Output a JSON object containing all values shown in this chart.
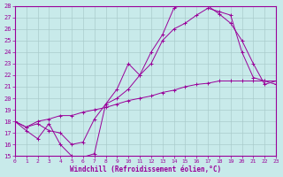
{
  "xlabel": "Windchill (Refroidissement éolien,°C)",
  "bg_color": "#c8eaea",
  "grid_color": "#aacccc",
  "line_color": "#990099",
  "xlim": [
    0,
    23
  ],
  "ylim": [
    15,
    28
  ],
  "yticks": [
    15,
    16,
    17,
    18,
    19,
    20,
    21,
    22,
    23,
    24,
    25,
    26,
    27,
    28
  ],
  "xticks": [
    0,
    1,
    2,
    3,
    4,
    5,
    6,
    7,
    8,
    9,
    10,
    11,
    12,
    13,
    14,
    15,
    16,
    17,
    18,
    19,
    20,
    21,
    22,
    23
  ],
  "line1": [
    18.0,
    17.2,
    16.5,
    17.8,
    16.0,
    15.0,
    14.9,
    15.2,
    19.5,
    20.8,
    23.0,
    22.0,
    24.0,
    25.5,
    27.8,
    28.2,
    28.2,
    28.0,
    27.3,
    26.5,
    25.0,
    23.0,
    21.2,
    21.5
  ],
  "line2": [
    18.0,
    17.5,
    17.8,
    17.2,
    17.0,
    16.0,
    16.2,
    18.2,
    19.5,
    20.0,
    20.8,
    22.0,
    23.0,
    25.0,
    26.0,
    26.5,
    27.2,
    27.8,
    27.5,
    27.2,
    24.0,
    21.8,
    21.5,
    21.2
  ],
  "line3": [
    18.0,
    17.5,
    18.0,
    18.2,
    18.5,
    18.5,
    18.8,
    19.0,
    19.2,
    19.5,
    19.8,
    20.0,
    20.2,
    20.5,
    20.7,
    21.0,
    21.2,
    21.3,
    21.5,
    21.5,
    21.5,
    21.5,
    21.5,
    21.5
  ]
}
